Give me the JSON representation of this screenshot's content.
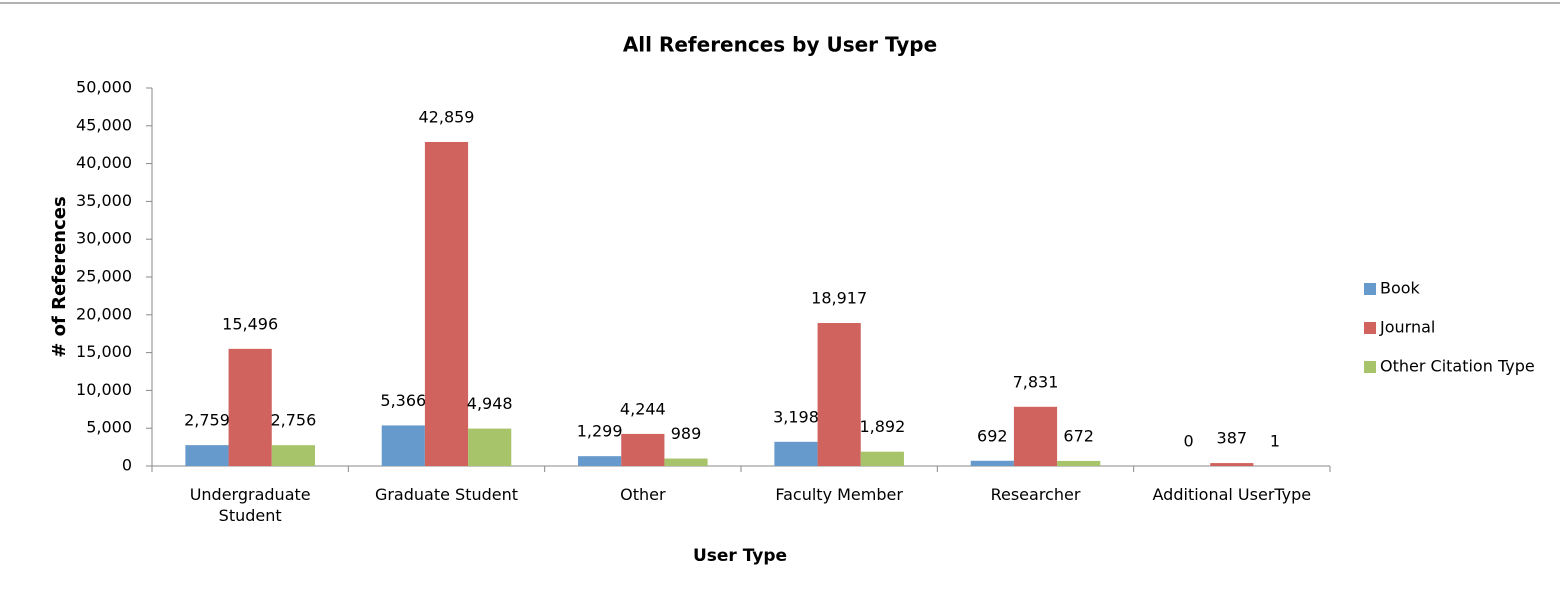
{
  "chart_data": {
    "type": "bar",
    "title": "All References by User Type",
    "x_label": "User Type",
    "y_label": "# of References",
    "categories": [
      "Undergraduate Student",
      "Graduate Student",
      "Other",
      "Faculty Member",
      "Researcher",
      "Additional UserType"
    ],
    "series": [
      {
        "name": "Book",
        "color": "#6699cc",
        "values": [
          2759,
          5366,
          1299,
          3198,
          692,
          0
        ],
        "value_labels": [
          "2,759",
          "5,366",
          "1,299",
          "3,198",
          "692",
          "0"
        ]
      },
      {
        "name": "Journal",
        "color": "#d0635d",
        "values": [
          15496,
          42859,
          4244,
          18917,
          7831,
          387
        ],
        "value_labels": [
          "15,496",
          "42,859",
          "4,244",
          "18,917",
          "7,831",
          "387"
        ]
      },
      {
        "name": "Other Citation Type",
        "color": "#a8c46a",
        "values": [
          2756,
          4948,
          989,
          1892,
          672,
          1
        ],
        "value_labels": [
          "2,756",
          "4,948",
          "989",
          "1,892",
          "672",
          "1"
        ]
      }
    ],
    "ylim": [
      0,
      50000
    ],
    "yticks": [
      0,
      {
        "value": 5000,
        "label": "5,000"
      },
      {
        "value": 10000,
        "label": "10,000"
      },
      {
        "value": 15000,
        "label": "15,000"
      },
      {
        "value": 20000,
        "label": "20,000"
      },
      {
        "value": 25000,
        "label": "25,000"
      },
      {
        "value": 30000,
        "label": "30,000"
      },
      {
        "value": 35000,
        "label": "35,000"
      },
      {
        "value": 40000,
        "label": "40,000"
      },
      {
        "value": 45000,
        "label": "45,000"
      },
      {
        "value": 50000,
        "label": "50,000"
      }
    ],
    "grid": false,
    "legend": "right"
  }
}
